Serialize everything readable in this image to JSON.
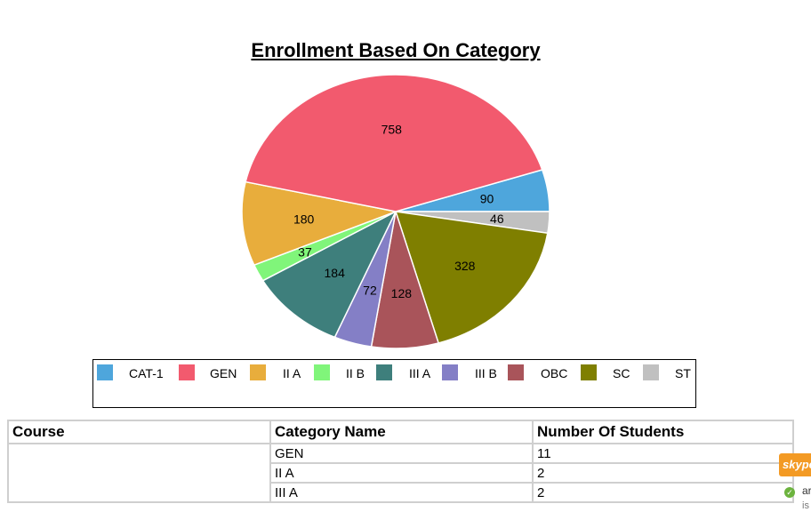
{
  "chart_data": {
    "type": "pie",
    "title": "Enrollment Based On Category",
    "categories": [
      "CAT-1",
      "GEN",
      "II A",
      "II B",
      "III A",
      "III B",
      "OBC",
      "SC",
      "ST"
    ],
    "values": [
      90,
      758,
      180,
      37,
      184,
      72,
      128,
      328,
      46
    ],
    "colors": [
      "#4ea6dc",
      "#f25a6e",
      "#e8ad3c",
      "#80f57a",
      "#3e7f7c",
      "#847fc6",
      "#a9545a",
      "#7f7f00",
      "#c0c0c0"
    ],
    "legend_position": "bottom"
  },
  "table": {
    "headers": [
      "Course",
      "Category Name",
      "Number Of Students"
    ],
    "rows": [
      [
        "",
        "GEN",
        "11"
      ],
      [
        "",
        "II A",
        "2"
      ],
      [
        "",
        "III A",
        "2"
      ]
    ]
  },
  "skype_widget": {
    "label": "skype",
    "line1": "ar",
    "line2": "is",
    "accent_color": "#f39a24"
  }
}
